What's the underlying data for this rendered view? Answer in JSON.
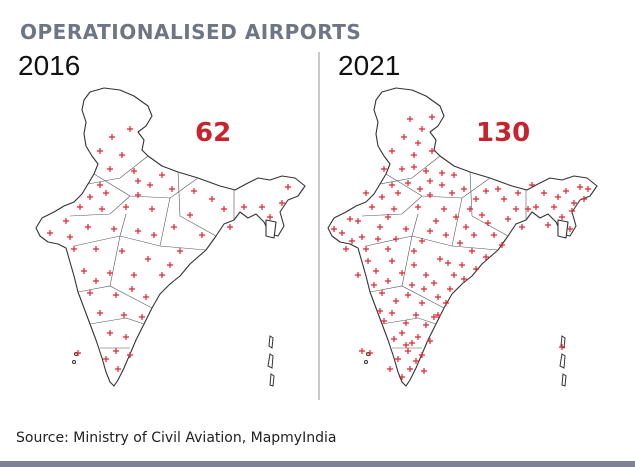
{
  "title": "OPERATIONALISED AIRPORTS",
  "panels": [
    {
      "year": "2016",
      "count": "62"
    },
    {
      "year": "2021",
      "count": "130"
    }
  ],
  "source": "Source: Ministry of Civil Aviation, MapmyIndia",
  "colors": {
    "title": "#6e7585",
    "count": "#c8232c",
    "marker": "#e0232e",
    "outline": "#333333",
    "bar": "#7d8294"
  },
  "marker_icon": "red-plus-icon"
}
